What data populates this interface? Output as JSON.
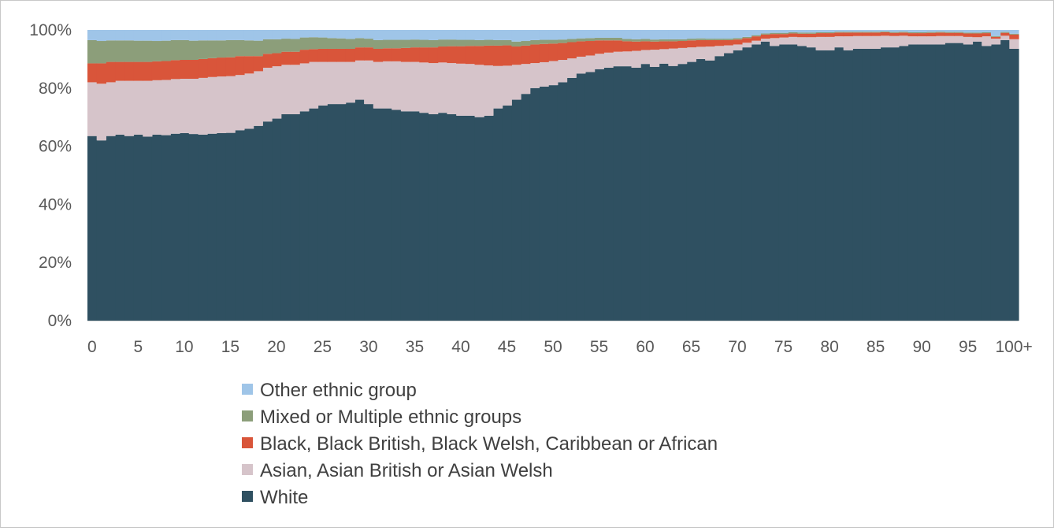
{
  "chart_data": {
    "type": "area",
    "stacked": true,
    "normalized": true,
    "xlabel": "",
    "ylabel": "",
    "ylim": [
      0,
      100
    ],
    "y_ticks": [
      "0%",
      "20%",
      "40%",
      "60%",
      "80%",
      "100%"
    ],
    "y_tick_values": [
      0,
      20,
      40,
      60,
      80,
      100
    ],
    "x_tick_labels": [
      "0",
      "5",
      "10",
      "15",
      "20",
      "25",
      "30",
      "35",
      "40",
      "45",
      "50",
      "55",
      "60",
      "65",
      "70",
      "75",
      "80",
      "85",
      "90",
      "95",
      "100+"
    ],
    "grid": false,
    "legend_position": "bottom",
    "categories": [
      "0",
      "1",
      "2",
      "3",
      "4",
      "5",
      "6",
      "7",
      "8",
      "9",
      "10",
      "11",
      "12",
      "13",
      "14",
      "15",
      "16",
      "17",
      "18",
      "19",
      "20",
      "21",
      "22",
      "23",
      "24",
      "25",
      "26",
      "27",
      "28",
      "29",
      "30",
      "31",
      "32",
      "33",
      "34",
      "35",
      "36",
      "37",
      "38",
      "39",
      "40",
      "41",
      "42",
      "43",
      "44",
      "45",
      "46",
      "47",
      "48",
      "49",
      "50",
      "51",
      "52",
      "53",
      "54",
      "55",
      "56",
      "57",
      "58",
      "59",
      "60",
      "61",
      "62",
      "63",
      "64",
      "65",
      "66",
      "67",
      "68",
      "69",
      "70",
      "71",
      "72",
      "73",
      "74",
      "75",
      "76",
      "77",
      "78",
      "79",
      "80",
      "81",
      "82",
      "83",
      "84",
      "85",
      "86",
      "87",
      "88",
      "89",
      "90",
      "91",
      "92",
      "93",
      "94",
      "95",
      "96",
      "97",
      "98",
      "99",
      "100+"
    ],
    "series": [
      {
        "name": "White",
        "color": "#2f5061",
        "values": [
          63.5,
          62,
          63.5,
          64,
          63.5,
          64,
          63.3,
          64,
          63.8,
          64.3,
          64.5,
          64.2,
          64,
          64.3,
          64.5,
          64.6,
          65.5,
          66,
          67,
          68.5,
          69.5,
          71,
          71,
          72,
          73,
          74,
          74.5,
          74.5,
          75,
          76,
          74.5,
          73,
          73,
          72.5,
          72,
          72,
          71.5,
          71,
          71.5,
          71,
          70.5,
          70.5,
          70,
          70.5,
          73,
          74,
          76,
          78,
          80,
          80.5,
          81,
          82,
          83.5,
          85,
          85.5,
          86.5,
          87,
          87.5,
          87.5,
          87,
          88.3,
          87.3,
          88.4,
          87.6,
          88.3,
          89,
          90,
          89.5,
          91,
          92,
          93,
          94,
          95,
          96,
          94.5,
          95,
          95,
          94.5,
          94,
          93,
          93,
          94,
          93,
          93.5,
          93.5,
          93.5,
          94,
          94,
          94.5,
          95,
          95,
          95,
          95,
          95.5,
          95.5,
          95,
          96,
          94.5,
          95,
          96.5,
          93.5
        ]
      },
      {
        "name": "Asian, Asian British or Asian Welsh",
        "color": "#d6c4ca",
        "values": [
          18.5,
          19.5,
          18.5,
          18.5,
          19,
          18.5,
          19.2,
          18.7,
          19,
          18.8,
          18.7,
          19,
          19.5,
          19.5,
          19.5,
          19.5,
          19,
          19,
          18.8,
          18.5,
          18,
          17,
          17,
          16.5,
          16,
          15,
          14.5,
          14.5,
          14,
          13.5,
          15,
          16,
          16.2,
          16.7,
          17,
          17,
          17.3,
          17.6,
          17.3,
          17.6,
          17.9,
          17.8,
          18,
          17.3,
          14.6,
          13.7,
          12,
          10.3,
          8.6,
          8.4,
          8.3,
          7.7,
          6.7,
          5.8,
          5.7,
          5.3,
          5.2,
          5,
          5.1,
          5.8,
          4.8,
          5.9,
          5,
          6,
          5.5,
          5,
          4.2,
          4.8,
          3.5,
          2.7,
          2,
          1.6,
          1.3,
          1,
          2.7,
          2.4,
          2.6,
          3,
          3.5,
          4.6,
          4.6,
          3.8,
          4.8,
          4.4,
          4.4,
          4.4,
          4,
          3.9,
          3.5,
          2.8,
          2.8,
          2.8,
          2.9,
          2.4,
          2.4,
          2.6,
          1.5,
          3.3,
          2,
          1.5,
          3.3
        ]
      },
      {
        "name": "Black, Black British, Black Welsh, Caribbean or African",
        "color": "#d9553a",
        "values": [
          6.5,
          7,
          7,
          6.5,
          6.5,
          6.5,
          6.5,
          6.5,
          6.5,
          6.5,
          6.5,
          6.5,
          6.5,
          6.5,
          6.5,
          6.5,
          6.5,
          6,
          5.2,
          4.8,
          4.5,
          4.5,
          4.5,
          4.7,
          4.4,
          4.5,
          4.5,
          4.5,
          4.5,
          4.5,
          4.5,
          4.5,
          4.5,
          4.5,
          4.8,
          5,
          5.2,
          5.4,
          5.5,
          5.8,
          6,
          6.2,
          6.5,
          6.8,
          7,
          7,
          6.3,
          6.3,
          6.4,
          6.3,
          6,
          5.8,
          5.6,
          5.3,
          5,
          4.6,
          4.2,
          3.9,
          3.5,
          3.2,
          3,
          2.8,
          2.7,
          2.5,
          2.4,
          2.4,
          2.3,
          2.2,
          2,
          1.8,
          1.7,
          1.6,
          1.5,
          1.4,
          1.4,
          1.2,
          1.2,
          1.2,
          1.2,
          1.3,
          1.3,
          1.3,
          1.3,
          1.2,
          1.2,
          1.2,
          1.2,
          1.1,
          1.1,
          1.1,
          1.1,
          1.2,
          1.2,
          1.1,
          1.1,
          1.2,
          1.3,
          1.1,
          0.6,
          1,
          1.6
        ]
      },
      {
        "name": "Mixed or Multiple ethnic groups",
        "color": "#8c9e7a",
        "values": [
          8,
          7.7,
          7.4,
          7.4,
          7.4,
          7.3,
          7.3,
          7,
          7,
          6.9,
          6.8,
          6.6,
          6.4,
          6.1,
          5.9,
          5.9,
          5.5,
          5.4,
          5.3,
          5,
          4.8,
          4.5,
          4.4,
          4.2,
          4.1,
          3.9,
          3.7,
          3.6,
          3.4,
          3.2,
          3,
          3,
          2.9,
          2.9,
          2.8,
          2.7,
          2.6,
          2.5,
          2.4,
          2.3,
          2.2,
          2.1,
          2,
          2,
          1.9,
          1.8,
          1.7,
          1.6,
          1.5,
          1.4,
          1.3,
          1.2,
          1.1,
          1,
          1,
          0.9,
          0.9,
          0.9,
          0.8,
          0.8,
          0.8,
          0.7,
          0.7,
          0.7,
          0.6,
          0.6,
          0.6,
          0.5,
          0.5,
          0.5,
          0.5,
          0.4,
          0.4,
          0.4,
          0.4,
          0.4,
          0.4,
          0.4,
          0.4,
          0.3,
          0.3,
          0.3,
          0.3,
          0.3,
          0.3,
          0.3,
          0.3,
          0.3,
          0.3,
          0.3,
          0.3,
          0.3,
          0.3,
          0.3,
          0.3,
          0.3,
          0.3,
          0.3,
          0.3,
          0.3,
          0.3
        ]
      },
      {
        "name": "Other ethnic group",
        "color": "#9fc5e8",
        "values": [
          3.5,
          3.8,
          3.6,
          3.6,
          3.6,
          3.7,
          3.7,
          3.8,
          3.7,
          3.5,
          3.5,
          3.7,
          3.6,
          3.6,
          3.6,
          3.5,
          3.5,
          3.6,
          3.7,
          3.2,
          3.2,
          3,
          3.1,
          2.6,
          2.5,
          2.6,
          2.8,
          2.9,
          3.1,
          2.8,
          3,
          3.5,
          3.4,
          3.4,
          3.4,
          3.3,
          3.4,
          3.5,
          3.3,
          3.3,
          3.4,
          3.4,
          3.5,
          3.4,
          3.5,
          3.5,
          4,
          3.8,
          3.5,
          3.4,
          3.4,
          3.3,
          3.1,
          2.9,
          2.8,
          2.7,
          2.7,
          2.7,
          3.1,
          3.2,
          3.1,
          3.3,
          3.2,
          3.2,
          3.2,
          3,
          2.9,
          3,
          3,
          3,
          2.8,
          2.4,
          1.8,
          1.2,
          1,
          1,
          0.8,
          0.9,
          0.9,
          0.8,
          0.8,
          0.6,
          0.6,
          0.6,
          0.6,
          0.6,
          0.5,
          0.6,
          0.6,
          0.8,
          0.8,
          0.7,
          0.5,
          0.7,
          0.7,
          0.9,
          1.2,
          0.8,
          1.1,
          0.2,
          1.3
        ]
      }
    ]
  },
  "legend": {
    "items": [
      {
        "label": "Other ethnic group",
        "color": "#9fc5e8"
      },
      {
        "label": "Mixed or Multiple ethnic groups",
        "color": "#8c9e7a"
      },
      {
        "label": "Black, Black British, Black Welsh, Caribbean or African",
        "color": "#d9553a"
      },
      {
        "label": "Asian, Asian British or Asian Welsh",
        "color": "#d6c4ca"
      },
      {
        "label": "White",
        "color": "#2f5061"
      }
    ]
  }
}
